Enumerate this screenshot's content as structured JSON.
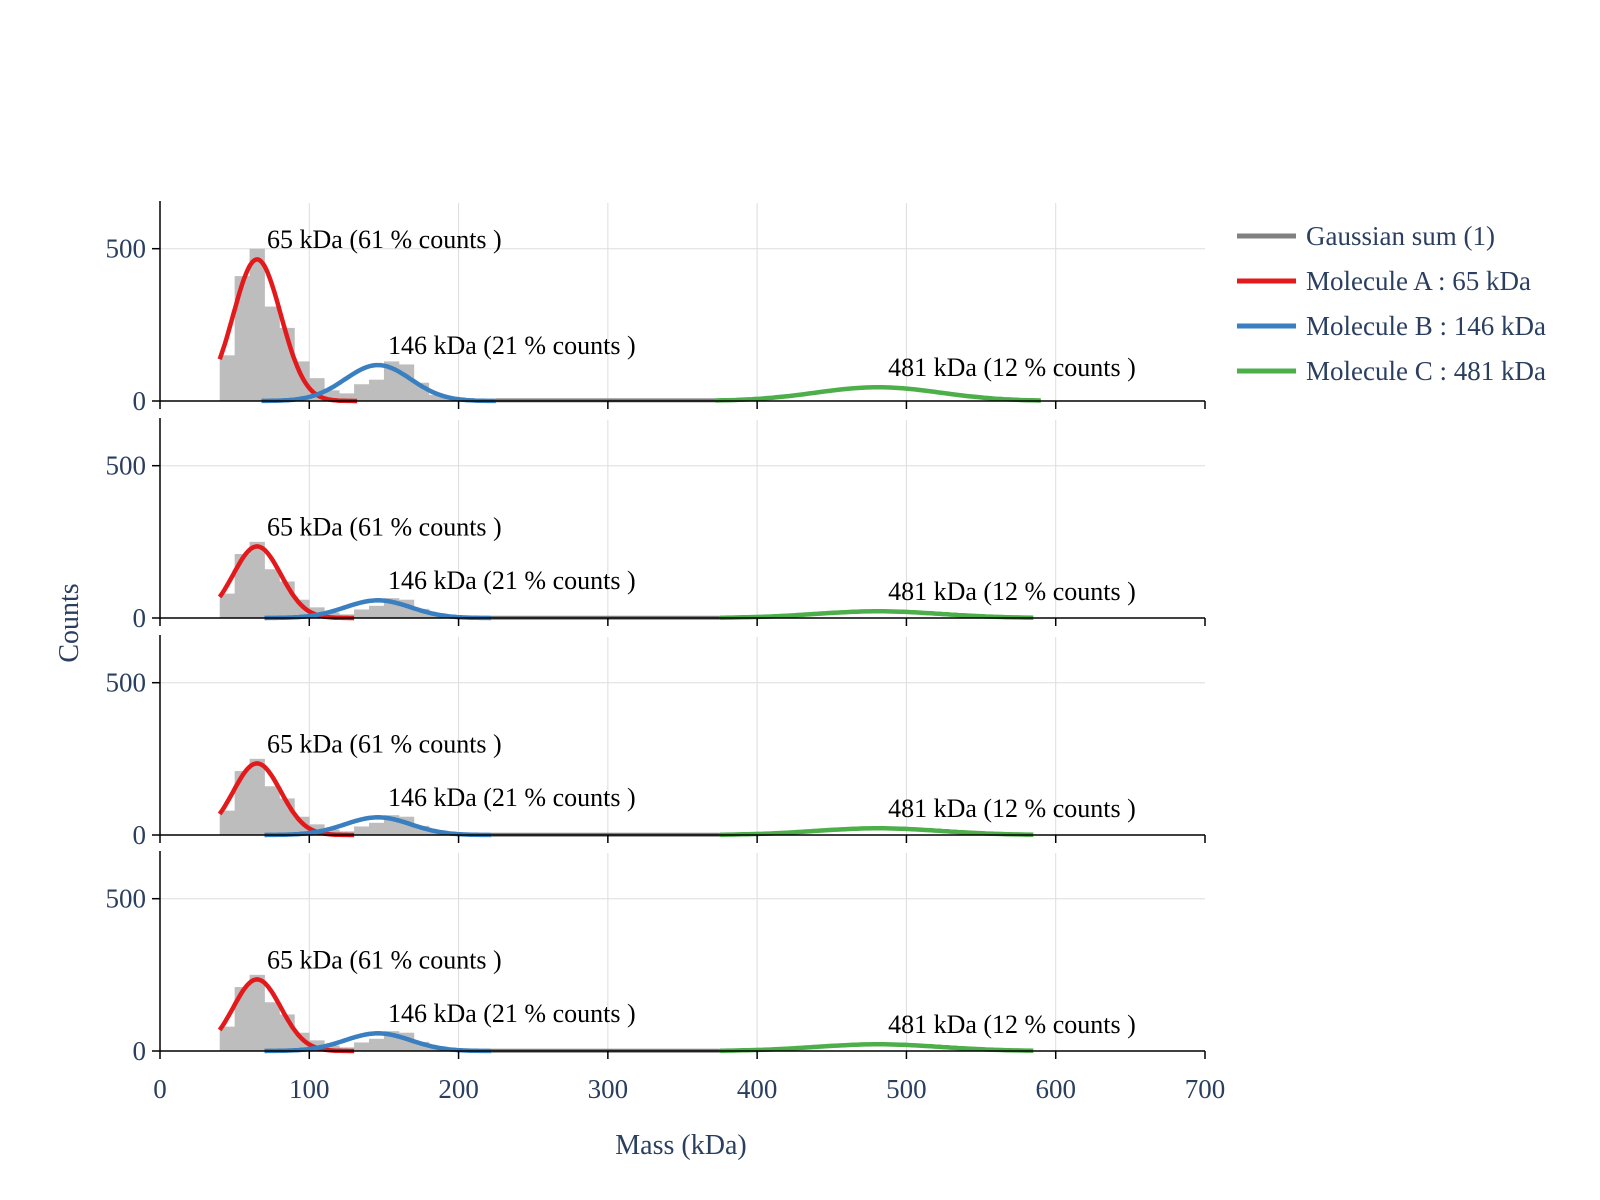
{
  "chart_data": {
    "type": "histogram",
    "xlabel": "Mass (kDa)",
    "ylabel": "Counts",
    "xlim": [
      0,
      700
    ],
    "ylim": [
      0,
      650
    ],
    "x_ticks": [
      "0",
      "100",
      "200",
      "300",
      "400",
      "500",
      "600",
      "700"
    ],
    "y_ticks": [
      "0",
      "500"
    ],
    "grid": true,
    "legend_position": "right",
    "legend": [
      {
        "name": "Gaussian sum (1)",
        "color": "#808080"
      },
      {
        "name": "Molecule A : 65 kDa",
        "color": "#e31a1c"
      },
      {
        "name": "Molecule B : 146 kDa",
        "color": "#3a7fc0"
      },
      {
        "name": "Molecule C : 481 kDa",
        "color": "#4daf4a"
      }
    ],
    "hist_color": "#bdbdbd",
    "panels": [
      {
        "bins": {
          "width": 10,
          "starts": [
            40,
            50,
            60,
            70,
            80,
            90,
            100,
            110,
            120,
            130,
            140,
            150,
            160,
            170,
            180,
            190,
            200
          ],
          "counts": [
            150,
            410,
            500,
            310,
            240,
            130,
            75,
            35,
            25,
            55,
            70,
            130,
            120,
            60,
            20,
            10,
            5
          ]
        },
        "gaussians": [
          {
            "mean": 65,
            "sigma": 16,
            "amp": 465,
            "range": [
              40,
              132
            ],
            "color": "#e31a1c"
          },
          {
            "mean": 146,
            "sigma": 22,
            "amp": 118,
            "range": [
              68,
              225
            ],
            "color": "#3a7fc0"
          },
          {
            "mean": 481,
            "sigma": 42,
            "amp": 45,
            "range": [
              372,
              590
            ],
            "color": "#4daf4a"
          }
        ],
        "sum_line": {
          "range": [
            225,
            372
          ],
          "value": 2,
          "color": "#808080"
        },
        "labels": [
          {
            "text": "65 kDa (61 % counts )",
            "x": 65,
            "y": 470
          },
          {
            "text": "146 kDa (21 % counts )",
            "x": 146,
            "y": 122
          },
          {
            "text": "481 kDa (12 % counts )",
            "x": 481,
            "y": 50
          }
        ]
      },
      {
        "bins": {
          "width": 10,
          "starts": [
            40,
            50,
            60,
            70,
            80,
            90,
            100,
            110,
            120,
            130,
            140,
            150,
            160,
            170,
            180,
            190
          ],
          "counts": [
            80,
            210,
            250,
            160,
            120,
            60,
            35,
            18,
            12,
            28,
            40,
            65,
            60,
            30,
            10,
            5
          ]
        },
        "gaussians": [
          {
            "mean": 65,
            "sigma": 16,
            "amp": 235,
            "range": [
              40,
              130
            ],
            "color": "#e31a1c"
          },
          {
            "mean": 146,
            "sigma": 22,
            "amp": 58,
            "range": [
              70,
              222
            ],
            "color": "#3a7fc0"
          },
          {
            "mean": 481,
            "sigma": 42,
            "amp": 22,
            "range": [
              375,
              585
            ],
            "color": "#4daf4a"
          }
        ],
        "sum_line": {
          "range": [
            222,
            375
          ],
          "value": 1,
          "color": "#808080"
        },
        "labels": [
          {
            "text": "65 kDa (61 % counts )",
            "x": 65,
            "y": 238
          },
          {
            "text": "146 kDa (21 % counts )",
            "x": 146,
            "y": 62
          },
          {
            "text": "481 kDa (12 % counts )",
            "x": 481,
            "y": 26
          }
        ]
      },
      {
        "bins": {
          "width": 10,
          "starts": [
            40,
            50,
            60,
            70,
            80,
            90,
            100,
            110,
            120,
            130,
            140,
            150,
            160,
            170,
            180,
            190
          ],
          "counts": [
            80,
            210,
            250,
            160,
            120,
            60,
            35,
            18,
            12,
            28,
            40,
            65,
            60,
            30,
            10,
            5
          ]
        },
        "gaussians": [
          {
            "mean": 65,
            "sigma": 16,
            "amp": 235,
            "range": [
              40,
              130
            ],
            "color": "#e31a1c"
          },
          {
            "mean": 146,
            "sigma": 22,
            "amp": 58,
            "range": [
              70,
              222
            ],
            "color": "#3a7fc0"
          },
          {
            "mean": 481,
            "sigma": 42,
            "amp": 22,
            "range": [
              375,
              585
            ],
            "color": "#4daf4a"
          }
        ],
        "sum_line": {
          "range": [
            222,
            375
          ],
          "value": 1,
          "color": "#808080"
        },
        "labels": [
          {
            "text": "65 kDa (61 % counts )",
            "x": 65,
            "y": 238
          },
          {
            "text": "146 kDa (21 % counts )",
            "x": 146,
            "y": 62
          },
          {
            "text": "481 kDa (12 % counts )",
            "x": 481,
            "y": 26
          }
        ]
      },
      {
        "bins": {
          "width": 10,
          "starts": [
            40,
            50,
            60,
            70,
            80,
            90,
            100,
            110,
            120,
            130,
            140,
            150,
            160,
            170,
            180,
            190
          ],
          "counts": [
            80,
            210,
            250,
            160,
            120,
            60,
            35,
            18,
            12,
            28,
            40,
            65,
            60,
            30,
            10,
            5
          ]
        },
        "gaussians": [
          {
            "mean": 65,
            "sigma": 16,
            "amp": 235,
            "range": [
              40,
              130
            ],
            "color": "#e31a1c"
          },
          {
            "mean": 146,
            "sigma": 22,
            "amp": 58,
            "range": [
              70,
              222
            ],
            "color": "#3a7fc0"
          },
          {
            "mean": 481,
            "sigma": 42,
            "amp": 22,
            "range": [
              375,
              585
            ],
            "color": "#4daf4a"
          }
        ],
        "sum_line": {
          "range": [
            222,
            375
          ],
          "value": 1,
          "color": "#808080"
        },
        "labels": [
          {
            "text": "65 kDa (61 % counts )",
            "x": 65,
            "y": 238
          },
          {
            "text": "146 kDa (21 % counts )",
            "x": 146,
            "y": 62
          },
          {
            "text": "481 kDa (12 % counts )",
            "x": 481,
            "y": 26
          }
        ]
      }
    ]
  }
}
